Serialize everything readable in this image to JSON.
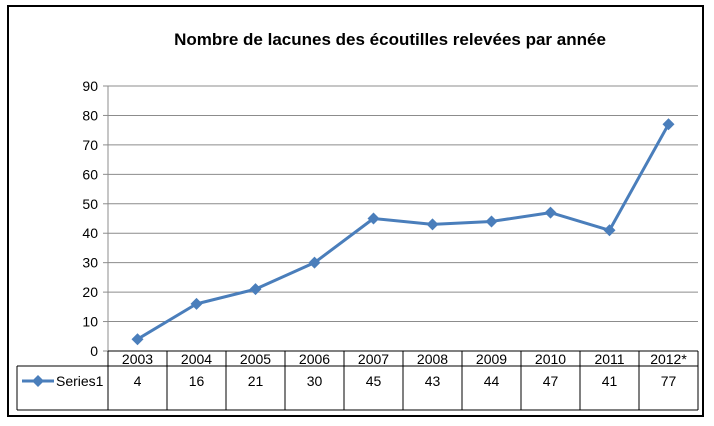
{
  "chart_data": {
    "type": "line",
    "title": "Nombre de lacunes des écoutilles relevées par année",
    "categories": [
      "2003",
      "2004",
      "2005",
      "2006",
      "2007",
      "2008",
      "2009",
      "2010",
      "2011",
      "2012*"
    ],
    "series": [
      {
        "name": "Series1",
        "values": [
          4,
          16,
          21,
          30,
          45,
          43,
          44,
          47,
          41,
          77
        ]
      }
    ],
    "ylim": [
      0,
      90
    ],
    "yticks": [
      0,
      10,
      20,
      30,
      40,
      50,
      60,
      70,
      80,
      90
    ],
    "grid": true,
    "legend": "data-table",
    "color": "#4a7ebb"
  }
}
